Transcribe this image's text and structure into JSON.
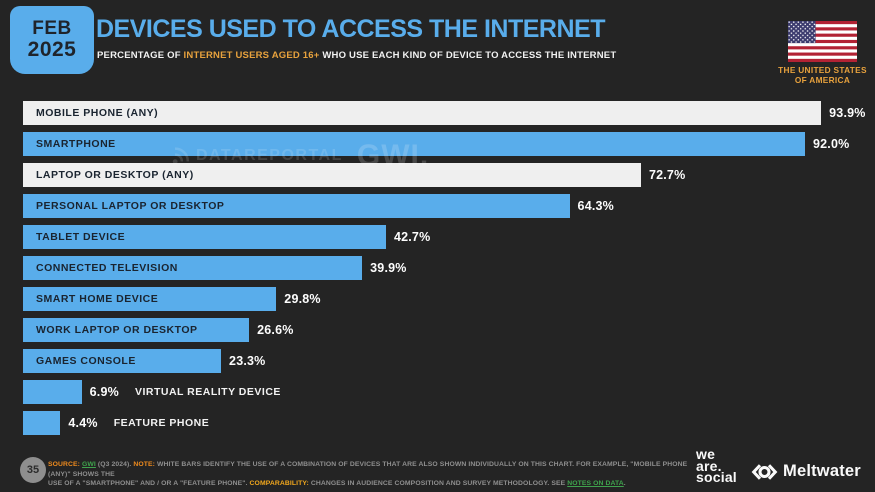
{
  "header": {
    "date_badge": {
      "month": "FEB",
      "year": "2025"
    },
    "title": "DEVICES USED TO ACCESS THE INTERNET",
    "subtitle_segments": [
      {
        "text": "PERCENTAGE OF ",
        "style": "default"
      },
      {
        "text": "INTERNET USERS AGED 16+",
        "style": "accent"
      },
      {
        "text": " WHO USE EACH KIND OF DEVICE TO ACCESS THE INTERNET",
        "style": "default"
      }
    ],
    "country": {
      "line1": "THE UNITED STATES",
      "line2": "OF AMERICA",
      "flag": "us-flag"
    }
  },
  "watermark": {
    "datareportal": "DATAREPORTAL",
    "gwi": "GWI."
  },
  "chart_data": {
    "type": "bar",
    "orientation": "horizontal",
    "unit": "%",
    "xlim": [
      0,
      100
    ],
    "title": "DEVICES USED TO ACCESS THE INTERNET",
    "bars": [
      {
        "label": "MOBILE PHONE (ANY)",
        "value": 93.9,
        "display": "93.9%",
        "style": "light",
        "label_position": "inside"
      },
      {
        "label": "SMARTPHONE",
        "value": 92.0,
        "display": "92.0%",
        "style": "blue",
        "label_position": "inside"
      },
      {
        "label": "LAPTOP OR DESKTOP (ANY)",
        "value": 72.7,
        "display": "72.7%",
        "style": "light",
        "label_position": "inside"
      },
      {
        "label": "PERSONAL LAPTOP OR DESKTOP",
        "value": 64.3,
        "display": "64.3%",
        "style": "blue",
        "label_position": "inside"
      },
      {
        "label": "TABLET DEVICE",
        "value": 42.7,
        "display": "42.7%",
        "style": "blue",
        "label_position": "inside"
      },
      {
        "label": "CONNECTED TELEVISION",
        "value": 39.9,
        "display": "39.9%",
        "style": "blue",
        "label_position": "inside"
      },
      {
        "label": "SMART HOME DEVICE",
        "value": 29.8,
        "display": "29.8%",
        "style": "blue",
        "label_position": "inside"
      },
      {
        "label": "WORK LAPTOP OR DESKTOP",
        "value": 26.6,
        "display": "26.6%",
        "style": "blue",
        "label_position": "inside"
      },
      {
        "label": "GAMES CONSOLE",
        "value": 23.3,
        "display": "23.3%",
        "style": "blue",
        "label_position": "inside"
      },
      {
        "label": "VIRTUAL REALITY DEVICE",
        "value": 6.9,
        "display": "6.9%",
        "style": "blue",
        "label_position": "outside"
      },
      {
        "label": "FEATURE PHONE",
        "value": 4.4,
        "display": "4.4%",
        "style": "blue",
        "label_position": "outside"
      }
    ]
  },
  "footer": {
    "page_number": "35",
    "note_segments": [
      {
        "text": "SOURCE: ",
        "style": "orange"
      },
      {
        "text": "GWI",
        "style": "green",
        "link": true
      },
      {
        "text": " (Q3 2024). ",
        "style": "default"
      },
      {
        "text": "NOTE: ",
        "style": "orange"
      },
      {
        "text": "WHITE BARS IDENTIFY THE USE OF A COMBINATION OF DEVICES THAT ARE ALSO SHOWN INDIVIDUALLY ON THIS CHART. FOR EXAMPLE, \"MOBILE PHONE (ANY)\" SHOWS THE",
        "style": "default",
        "br": true
      },
      {
        "text": "USE OF A \"SMARTPHONE\" AND / OR A \"FEATURE PHONE\". ",
        "style": "default"
      },
      {
        "text": "COMPARABILITY: ",
        "style": "amber"
      },
      {
        "text": "CHANGES IN AUDIENCE COMPOSITION AND SURVEY METHODOLOGY. SEE ",
        "style": "default"
      },
      {
        "text": "NOTES ON DATA",
        "style": "green",
        "link": true
      },
      {
        "text": ".",
        "style": "default"
      }
    ],
    "logos": {
      "we_are_social": [
        "we",
        "are.",
        "social"
      ],
      "meltwater": "Meltwater"
    }
  },
  "colors": {
    "accent_blue": "#59ADEB",
    "light_bar": "#EFEFEF",
    "bar_label": "#1A2430",
    "orange": "#E8A23D",
    "note_orange": "#EF8B1D",
    "note_amber": "#F2A81D",
    "link_green": "#3FA34D",
    "background": "#242424",
    "text_light": "#F2F2F2",
    "footer_text": "#8F8F8F",
    "circle_gray": "#8E8E8E"
  }
}
